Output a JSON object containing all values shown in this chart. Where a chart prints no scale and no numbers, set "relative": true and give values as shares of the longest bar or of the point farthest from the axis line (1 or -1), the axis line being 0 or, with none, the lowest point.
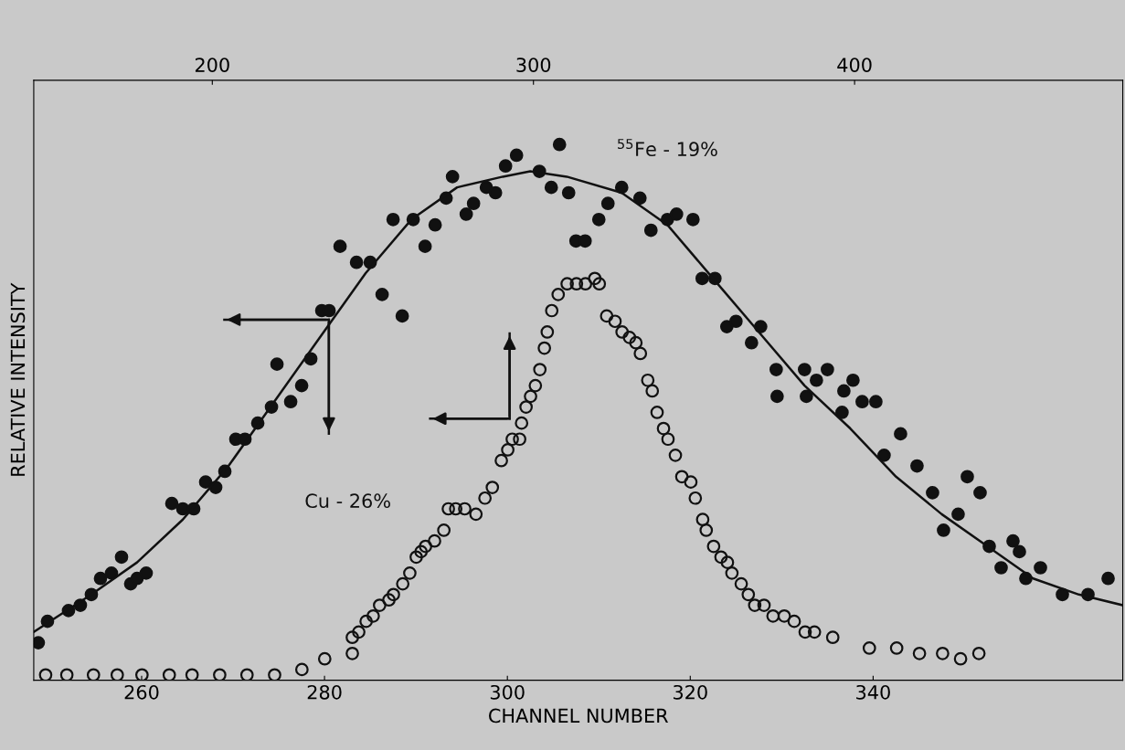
{
  "chart_data": {
    "type": "scatter",
    "xlabel": "CHANNEL NUMBER",
    "ylabel": "RELATIVE INTENSITY",
    "relative": true,
    "grid": false,
    "xlim": [
      248.2,
      367.3
    ],
    "xticks": [
      260,
      280,
      300,
      320,
      340
    ],
    "x2lim": [
      144.4,
      483.5
    ],
    "x2ticks": [
      200,
      300,
      400
    ],
    "series": [
      {
        "name": "$^{55}$Fe - 19%",
        "marker": "circle",
        "color": "#111111",
        "x": [
          248.7,
          249.7,
          252.0,
          253.3,
          254.5,
          255.5,
          256.7,
          257.8,
          258.8,
          259.5,
          260.5,
          263.3,
          264.5,
          265.7,
          267.0,
          268.1,
          269.1,
          270.3,
          271.3,
          272.7,
          274.2,
          274.8,
          276.3,
          277.5,
          278.5,
          279.7,
          280.5,
          281.7,
          283.5,
          285.0,
          286.3,
          287.5,
          288.5,
          289.7,
          291.0,
          292.1,
          293.3,
          294.0,
          295.5,
          296.3,
          297.7,
          298.7,
          299.8,
          301.0,
          303.5,
          304.8,
          305.7,
          306.7,
          307.5,
          308.5,
          310.0,
          311.0,
          312.5,
          314.5,
          315.7,
          317.5,
          318.5,
          320.3,
          321.3,
          322.7,
          324.0,
          325.0,
          326.7,
          327.7,
          329.4,
          329.5,
          332.5,
          332.7,
          333.8,
          335.0,
          336.6,
          336.8,
          337.8,
          338.8,
          340.3,
          341.2,
          343.0,
          344.8,
          346.5,
          347.7,
          349.3,
          350.3,
          351.7,
          352.7,
          354.0,
          355.3,
          356.0,
          356.7,
          358.3,
          360.7,
          363.5,
          365.7
        ],
        "values": [
          0.07,
          0.11,
          0.13,
          0.14,
          0.16,
          0.19,
          0.2,
          0.23,
          0.18,
          0.19,
          0.2,
          0.33,
          0.32,
          0.32,
          0.37,
          0.36,
          0.39,
          0.45,
          0.45,
          0.48,
          0.51,
          0.59,
          0.52,
          0.55,
          0.6,
          0.69,
          0.69,
          0.81,
          0.78,
          0.78,
          0.72,
          0.86,
          0.68,
          0.86,
          0.81,
          0.85,
          0.9,
          0.94,
          0.87,
          0.89,
          0.92,
          0.91,
          0.96,
          0.98,
          0.95,
          0.92,
          1.0,
          0.91,
          0.82,
          0.82,
          0.86,
          0.89,
          0.92,
          0.9,
          0.84,
          0.86,
          0.87,
          0.86,
          0.75,
          0.75,
          0.66,
          0.67,
          0.63,
          0.66,
          0.58,
          0.53,
          0.58,
          0.53,
          0.56,
          0.58,
          0.5,
          0.54,
          0.56,
          0.52,
          0.52,
          0.42,
          0.46,
          0.4,
          0.35,
          0.28,
          0.31,
          0.38,
          0.35,
          0.25,
          0.21,
          0.26,
          0.24,
          0.19,
          0.21,
          0.16,
          0.16,
          0.19
        ]
      },
      {
        "type": "line",
        "marker": "none",
        "color": "#111111",
        "x": [
          248.2,
          254.5,
          259.5,
          264.5,
          269.5,
          274.5,
          279.5,
          284.5,
          289.5,
          294.5,
          299.5,
          302.5,
          306.5,
          312.5,
          317.5,
          322.5,
          327.5,
          332.5,
          337.5,
          342.5,
          347.5,
          352.5,
          357.5,
          362.5,
          367.3
        ],
        "values": [
          0.09,
          0.16,
          0.22,
          0.3,
          0.4,
          0.52,
          0.64,
          0.76,
          0.86,
          0.92,
          0.94,
          0.95,
          0.94,
          0.91,
          0.85,
          0.75,
          0.65,
          0.55,
          0.47,
          0.38,
          0.31,
          0.25,
          0.19,
          0.16,
          0.14
        ]
      },
      {
        "name": "Cu - 26%",
        "marker": "circle",
        "axis": "x2",
        "color": "#111111",
        "x": [
          148.1,
          154.7,
          163.0,
          170.4,
          178.1,
          186.6,
          193.7,
          202.3,
          210.8,
          219.4,
          227.9,
          235.0,
          243.6,
          243.6,
          245.6,
          247.9,
          250.1,
          252.1,
          255.0,
          256.4,
          259.3,
          261.5,
          263.5,
          265.0,
          266.4,
          269.2,
          272.1,
          273.5,
          275.8,
          278.6,
          282.1,
          284.9,
          287.2,
          290.0,
          292.0,
          293.4,
          295.7,
          296.3,
          297.7,
          299.1,
          300.6,
          302.0,
          303.4,
          304.3,
          305.7,
          307.7,
          310.5,
          313.4,
          316.2,
          319.1,
          320.5,
          322.8,
          325.4,
          327.6,
          329.9,
          331.9,
          333.3,
          335.6,
          337.0,
          338.5,
          340.5,
          341.9,
          344.2,
          346.2,
          349.0,
          350.4,
          352.7,
          353.8,
          356.1,
          358.4,
          360.4,
          361.8,
          364.7,
          366.9,
          368.9,
          371.8,
          374.6,
          378.1,
          381.2,
          384.6,
          387.5,
          393.2,
          404.6,
          413.1,
          420.2,
          427.4,
          433.0,
          438.7
        ],
        "values": [
          0.01,
          0.01,
          0.01,
          0.01,
          0.01,
          0.01,
          0.01,
          0.01,
          0.01,
          0.01,
          0.02,
          0.04,
          0.05,
          0.08,
          0.09,
          0.11,
          0.12,
          0.14,
          0.15,
          0.16,
          0.18,
          0.2,
          0.23,
          0.24,
          0.25,
          0.26,
          0.28,
          0.32,
          0.32,
          0.32,
          0.31,
          0.34,
          0.36,
          0.41,
          0.43,
          0.45,
          0.45,
          0.48,
          0.51,
          0.53,
          0.55,
          0.58,
          0.62,
          0.65,
          0.69,
          0.72,
          0.74,
          0.74,
          0.74,
          0.75,
          0.74,
          0.68,
          0.67,
          0.65,
          0.64,
          0.63,
          0.61,
          0.56,
          0.54,
          0.5,
          0.47,
          0.45,
          0.42,
          0.38,
          0.37,
          0.34,
          0.3,
          0.28,
          0.25,
          0.23,
          0.22,
          0.2,
          0.18,
          0.16,
          0.14,
          0.14,
          0.12,
          0.12,
          0.11,
          0.09,
          0.09,
          0.08,
          0.06,
          0.06,
          0.05,
          0.05,
          0.04,
          0.05
        ]
      }
    ]
  }
}
